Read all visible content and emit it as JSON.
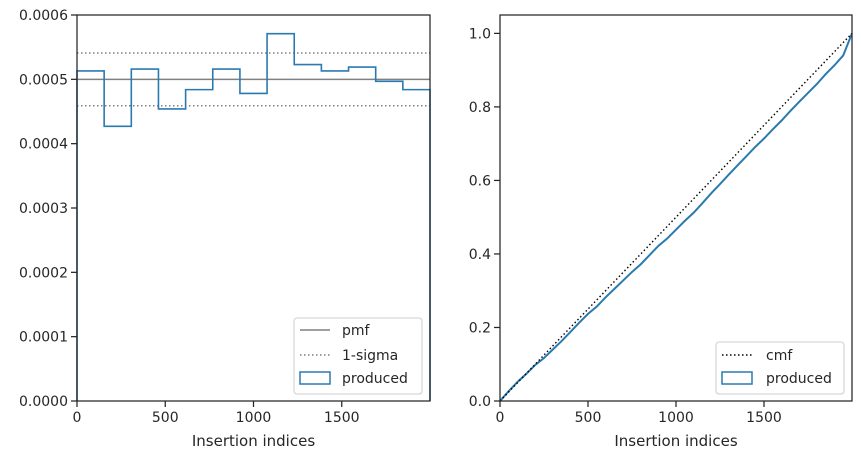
{
  "chart_data": [
    {
      "type": "line",
      "xlabel": "Insertion indices",
      "ylabel": "",
      "xlim": [
        0,
        2000
      ],
      "ylim": [
        0,
        0.0006
      ],
      "xticks": [
        0,
        500,
        1000,
        1500
      ],
      "xtick_labels": [
        "0",
        "500",
        "1000",
        "1500"
      ],
      "yticks": [
        0,
        0.0001,
        0.0002,
        0.0003,
        0.0004,
        0.0005,
        0.0006
      ],
      "ytick_labels": [
        "0.0000",
        "0.0001",
        "0.0002",
        "0.0003",
        "0.0004",
        "0.0005",
        "0.0006"
      ],
      "grid": false,
      "legend_position": "lower-right",
      "colors": {
        "pmf": "#808080",
        "sigma": "#808080",
        "produced": "#2a7ab0"
      },
      "pmf": {
        "name": "pmf",
        "value": 0.0005
      },
      "sigma": {
        "name": "1-sigma",
        "lower": 0.000459,
        "upper": 0.000541
      },
      "histogram": {
        "name": "produced",
        "bin_edges": [
          0,
          153.8,
          307.7,
          461.5,
          615.4,
          769.2,
          923.1,
          1076.9,
          1230.8,
          1384.6,
          1538.5,
          1692.3,
          1846.2,
          2000
        ],
        "values": [
          0.000513,
          0.000427,
          0.000516,
          0.000454,
          0.000484,
          0.000516,
          0.000478,
          0.000571,
          0.000523,
          0.000513,
          0.000519,
          0.000497,
          0.000484
        ]
      }
    },
    {
      "type": "line",
      "xlabel": "Insertion indices",
      "ylabel": "",
      "xlim": [
        0,
        2000
      ],
      "ylim": [
        0,
        1.05
      ],
      "xticks": [
        0,
        500,
        1000,
        1500
      ],
      "xtick_labels": [
        "0",
        "500",
        "1000",
        "1500"
      ],
      "yticks": [
        0,
        0.2,
        0.4,
        0.6,
        0.8,
        1.0
      ],
      "ytick_labels": [
        "0.0",
        "0.2",
        "0.4",
        "0.6",
        "0.8",
        "1.0"
      ],
      "grid": false,
      "legend_position": "lower-right",
      "colors": {
        "cmf": "#000000",
        "produced": "#2a7ab0"
      },
      "cmf": {
        "name": "cmf",
        "x": [
          0,
          2000
        ],
        "y": [
          0,
          1
        ]
      },
      "produced": {
        "name": "produced",
        "x": [
          0,
          50,
          100,
          150,
          200,
          250,
          300,
          350,
          400,
          450,
          500,
          550,
          600,
          650,
          700,
          750,
          800,
          850,
          900,
          950,
          1000,
          1050,
          1100,
          1150,
          1200,
          1250,
          1300,
          1350,
          1400,
          1450,
          1500,
          1550,
          1600,
          1650,
          1700,
          1750,
          1800,
          1850,
          1900,
          1950,
          2000
        ],
        "y": [
          0,
          0.027,
          0.052,
          0.074,
          0.098,
          0.117,
          0.14,
          0.163,
          0.188,
          0.213,
          0.237,
          0.257,
          0.282,
          0.305,
          0.328,
          0.351,
          0.372,
          0.397,
          0.422,
          0.442,
          0.466,
          0.49,
          0.512,
          0.538,
          0.565,
          0.59,
          0.616,
          0.641,
          0.666,
          0.691,
          0.714,
          0.739,
          0.763,
          0.789,
          0.814,
          0.838,
          0.862,
          0.889,
          0.913,
          0.94,
          1.0
        ]
      }
    }
  ]
}
